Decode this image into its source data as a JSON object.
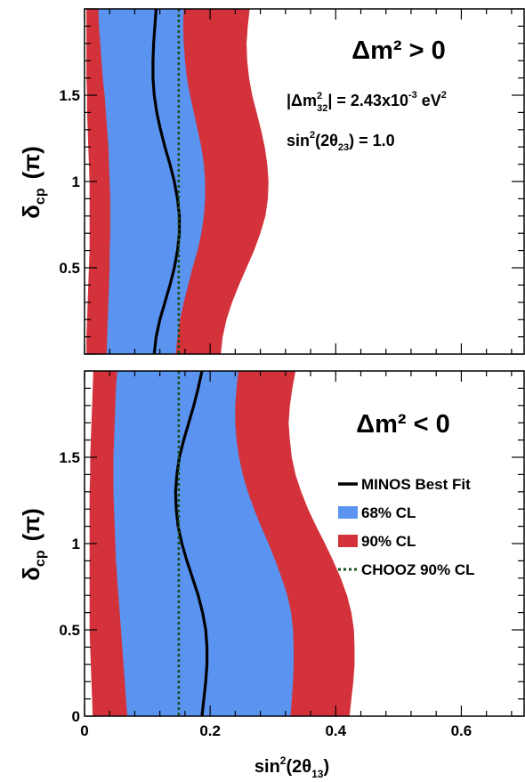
{
  "chart_data": [
    {
      "type": "area",
      "panel": "top",
      "annotation_main": "Δm² > 0",
      "annotation_dm32_prefix": "|Δm",
      "annotation_dm32_sup": "2",
      "annotation_dm32_sub": "32",
      "annotation_dm32_value": "| = 2.43x10",
      "annotation_dm32_exp": "-3",
      "annotation_dm32_unit": " eV",
      "annotation_dm32_unit_sup": "2",
      "annotation_theta23_prefix": "sin",
      "annotation_theta23_sup": "2",
      "annotation_theta23_mid": "(2θ",
      "annotation_theta23_sub": "23",
      "annotation_theta23_suffix": ") = 1.0",
      "ylabel_main": "δ",
      "ylabel_sub": "cp",
      "ylabel_unit": "(π)",
      "xlim": [
        0,
        0.7
      ],
      "ylim": [
        0,
        2
      ],
      "y_ticks": [
        "0.5",
        "1",
        "1.5"
      ],
      "y_tick_values": [
        0.5,
        1.0,
        1.5
      ],
      "y_values": [
        0.0,
        0.1,
        0.2,
        0.3,
        0.4,
        0.5,
        0.6,
        0.7,
        0.8,
        0.9,
        1.0,
        1.1,
        1.2,
        1.3,
        1.4,
        1.5,
        1.6,
        1.7,
        1.8,
        1.9,
        2.0
      ],
      "series": [
        {
          "name": "90% CL",
          "color": "#d3323a",
          "x_low": [
            0.003,
            0.003,
            0.004,
            0.005,
            0.006,
            0.007,
            0.008,
            0.008,
            0.008,
            0.008,
            0.008,
            0.007,
            0.006,
            0.005,
            0.004,
            0.004,
            0.003,
            0.003,
            0.003,
            0.003,
            0.003
          ],
          "x_high": [
            0.217,
            0.22,
            0.226,
            0.235,
            0.246,
            0.258,
            0.27,
            0.28,
            0.288,
            0.292,
            0.293,
            0.291,
            0.287,
            0.281,
            0.274,
            0.267,
            0.262,
            0.259,
            0.258,
            0.26,
            0.263
          ]
        },
        {
          "name": "68% CL",
          "color": "#5b93f0",
          "x_low": [
            0.035,
            0.036,
            0.037,
            0.038,
            0.039,
            0.04,
            0.04,
            0.041,
            0.041,
            0.041,
            0.04,
            0.039,
            0.038,
            0.036,
            0.034,
            0.032,
            0.029,
            0.027,
            0.025,
            0.023,
            0.022
          ],
          "x_high": [
            0.145,
            0.148,
            0.152,
            0.158,
            0.165,
            0.172,
            0.18,
            0.186,
            0.19,
            0.192,
            0.192,
            0.19,
            0.186,
            0.18,
            0.174,
            0.168,
            0.163,
            0.16,
            0.158,
            0.157,
            0.158
          ]
        },
        {
          "name": "MINOS Best Fit",
          "color": "#000000",
          "x": [
            0.111,
            0.114,
            0.12,
            0.128,
            0.136,
            0.143,
            0.148,
            0.151,
            0.151,
            0.148,
            0.143,
            0.136,
            0.128,
            0.121,
            0.115,
            0.111,
            0.109,
            0.109,
            0.11,
            0.112,
            0.114
          ]
        },
        {
          "name": "CHOOZ 90% CL",
          "color": "#1a4d1a",
          "x_const": 0.15
        }
      ]
    },
    {
      "type": "area",
      "panel": "bottom",
      "annotation_main": "Δm² < 0",
      "xlabel_prefix": "sin",
      "xlabel_sup": "2",
      "xlabel_mid": "(2θ",
      "xlabel_sub": "13",
      "xlabel_suffix": ")",
      "ylabel_main": "δ",
      "ylabel_sub": "cp",
      "ylabel_unit": "(π)",
      "xlim": [
        0,
        0.7
      ],
      "ylim": [
        0,
        2
      ],
      "x_ticks": [
        "0",
        "0.2",
        "0.4",
        "0.6"
      ],
      "x_tick_values": [
        0.0,
        0.2,
        0.4,
        0.6
      ],
      "y_ticks": [
        "0",
        "0.5",
        "1",
        "1.5"
      ],
      "y_tick_values": [
        0.0,
        0.5,
        1.0,
        1.5
      ],
      "y_values": [
        0.0,
        0.1,
        0.2,
        0.3,
        0.4,
        0.5,
        0.6,
        0.7,
        0.8,
        0.9,
        1.0,
        1.1,
        1.2,
        1.3,
        1.4,
        1.5,
        1.6,
        1.7,
        1.8,
        1.9,
        2.0
      ],
      "series": [
        {
          "name": "90% CL",
          "color": "#d3323a",
          "x_low": [
            0.013,
            0.012,
            0.011,
            0.01,
            0.009,
            0.008,
            0.008,
            0.008,
            0.008,
            0.008,
            0.008,
            0.008,
            0.008,
            0.008,
            0.009,
            0.009,
            0.01,
            0.011,
            0.012,
            0.013,
            0.014
          ],
          "x_high": [
            0.422,
            0.425,
            0.428,
            0.43,
            0.43,
            0.429,
            0.425,
            0.418,
            0.408,
            0.396,
            0.383,
            0.369,
            0.356,
            0.345,
            0.336,
            0.33,
            0.327,
            0.325,
            0.327,
            0.331,
            0.336
          ]
        },
        {
          "name": "68% CL",
          "color": "#5b93f0",
          "x_low": [
            0.068,
            0.066,
            0.064,
            0.062,
            0.06,
            0.058,
            0.056,
            0.054,
            0.052,
            0.05,
            0.049,
            0.048,
            0.047,
            0.046,
            0.046,
            0.046,
            0.047,
            0.048,
            0.049,
            0.05,
            0.052
          ],
          "x_high": [
            0.328,
            0.33,
            0.332,
            0.333,
            0.333,
            0.332,
            0.329,
            0.323,
            0.314,
            0.304,
            0.293,
            0.281,
            0.27,
            0.26,
            0.252,
            0.246,
            0.242,
            0.24,
            0.24,
            0.242,
            0.245
          ]
        },
        {
          "name": "MINOS Best Fit",
          "color": "#000000",
          "x": [
            0.187,
            0.19,
            0.193,
            0.195,
            0.195,
            0.193,
            0.188,
            0.181,
            0.172,
            0.163,
            0.155,
            0.149,
            0.146,
            0.145,
            0.147,
            0.151,
            0.158,
            0.166,
            0.174,
            0.181,
            0.187
          ]
        },
        {
          "name": "CHOOZ 90% CL",
          "color": "#1a4d1a",
          "x_const": 0.15
        }
      ],
      "legend_location": "right",
      "legend": [
        {
          "label": "MINOS Best Fit",
          "kind": "line",
          "color": "#000000"
        },
        {
          "label": "68% CL",
          "kind": "box",
          "color": "#5b93f0"
        },
        {
          "label": "90% CL",
          "kind": "box",
          "color": "#d3323a"
        },
        {
          "label": "CHOOZ 90% CL",
          "kind": "dashed",
          "color": "#1a4d1a"
        }
      ]
    }
  ]
}
